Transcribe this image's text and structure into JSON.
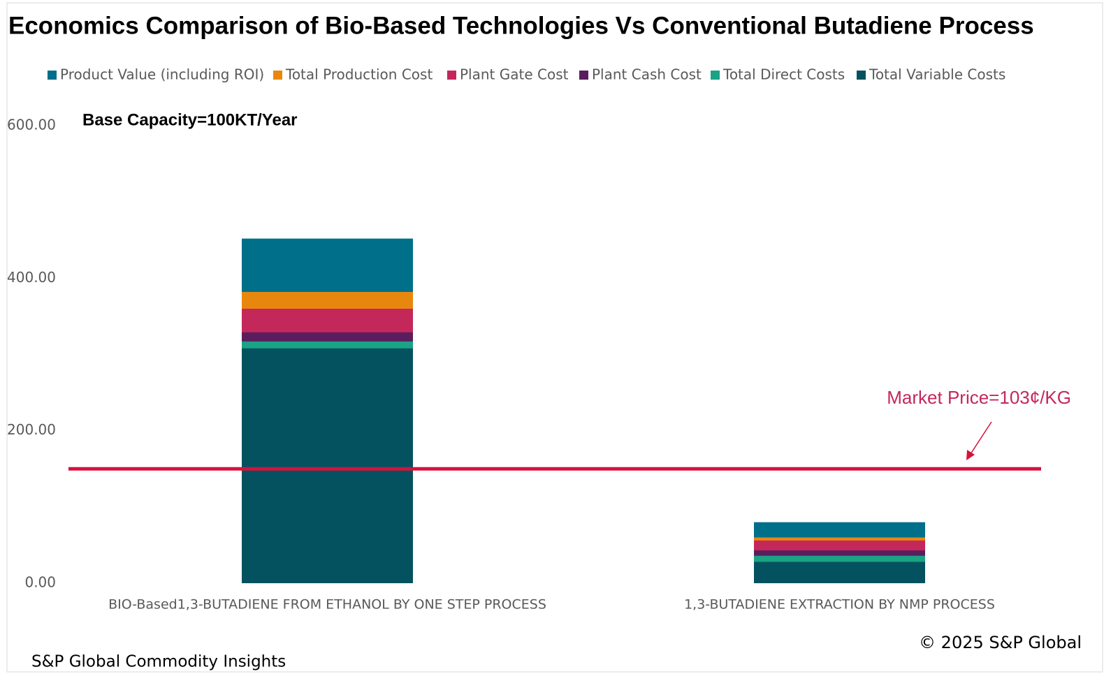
{
  "chart_data": {
    "type": "bar",
    "title": "Economics Comparison of Bio-Based Technologies Vs Conventional Butadiene Process",
    "subtitle": "Base Capacity=100KT/Year",
    "categories": [
      "BIO-Based1,3-BUTADIENE FROM ETHANOL BY ONE STEP PROCESS",
      "1,3-BUTADIENE EXTRACTION BY NMP PROCESS"
    ],
    "series": [
      {
        "name": "Product Value (including ROI)",
        "color": "#006f8a",
        "values": [
          452,
          80
        ]
      },
      {
        "name": "Total Production Cost",
        "color": "#e8870e",
        "values": [
          382,
          60
        ]
      },
      {
        "name": "Plant Gate Cost",
        "color": "#c4285a",
        "values": [
          360,
          56
        ]
      },
      {
        "name": "Plant Cash Cost",
        "color": "#5a1e5e",
        "values": [
          329,
          43
        ]
      },
      {
        "name": "Total Direct Costs",
        "color": "#1aa384",
        "values": [
          317,
          36
        ]
      },
      {
        "name": "Total Variable Costs",
        "color": "#04525f",
        "values": [
          308,
          28
        ]
      }
    ],
    "ylim": [
      0,
      600
    ],
    "yticks": [
      {
        "value": 0,
        "label": "0.00"
      },
      {
        "value": 200,
        "label": "200.00"
      },
      {
        "value": 400,
        "label": "400.00"
      },
      {
        "value": 600,
        "label": "600.00"
      }
    ],
    "reference_line": {
      "value": 150,
      "label": "Market Price=103¢/KG",
      "color": "#d6123c"
    },
    "copyright": "© 2025 S&P Global",
    "source": "S&P Global Commodity Insights"
  }
}
